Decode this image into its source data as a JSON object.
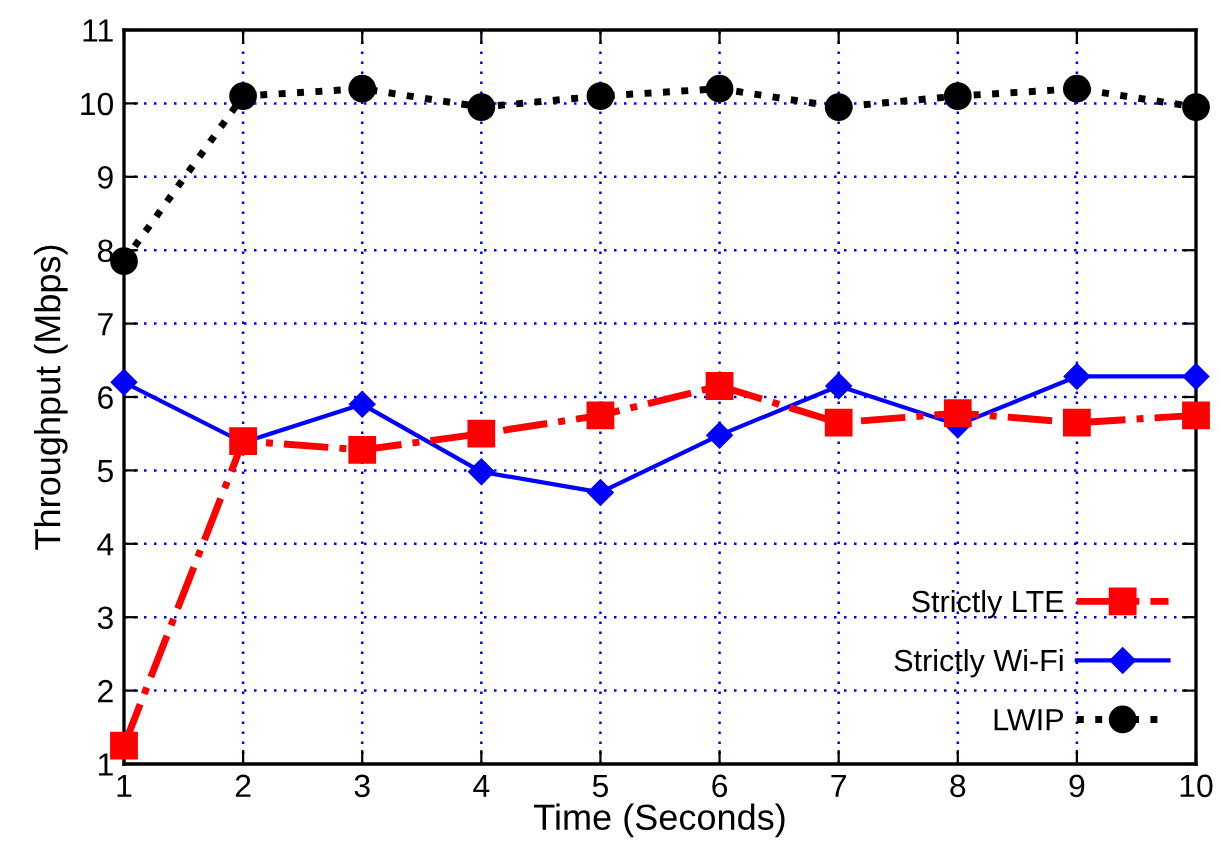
{
  "chart_data": {
    "type": "line",
    "xlabel": "Time (Seconds)",
    "ylabel": "Throughput (Mbps)",
    "x": [
      1,
      2,
      3,
      4,
      5,
      6,
      7,
      8,
      9,
      10
    ],
    "series": [
      {
        "name": "Strictly LTE",
        "color": "#ff0000",
        "marker": "square",
        "line_style": "dashdot",
        "values": [
          1.25,
          5.4,
          5.28,
          5.5,
          5.75,
          6.15,
          5.65,
          5.78,
          5.65,
          5.75
        ]
      },
      {
        "name": "Strictly Wi-Fi",
        "color": "#0000ff",
        "marker": "diamond",
        "line_style": "solid",
        "values": [
          6.2,
          5.38,
          5.9,
          4.98,
          4.7,
          5.48,
          6.15,
          5.62,
          6.28,
          6.28
        ]
      },
      {
        "name": "LWIP",
        "color": "#000000",
        "marker": "circle",
        "line_style": "dotted",
        "values": [
          7.85,
          10.1,
          10.2,
          9.95,
          10.1,
          10.2,
          9.95,
          10.1,
          10.2,
          9.95
        ]
      }
    ],
    "xlim": [
      1,
      10
    ],
    "xticks": [
      1,
      2,
      3,
      4,
      5,
      6,
      7,
      8,
      9,
      10
    ],
    "ylim": [
      1,
      11
    ],
    "yticks": [
      1,
      2,
      3,
      4,
      5,
      6,
      7,
      8,
      9,
      10,
      11
    ],
    "grid": true,
    "legend": "bottom right"
  }
}
